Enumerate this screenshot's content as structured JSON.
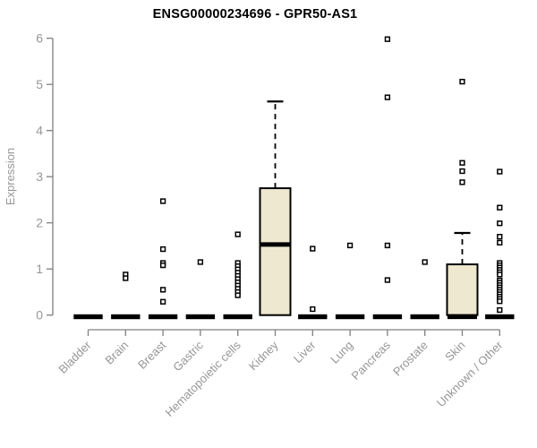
{
  "chart_data": {
    "type": "boxplot",
    "title": "ENSG00000234696 - GPR50-AS1",
    "ylabel": "Expression",
    "ylim": [
      0,
      6
    ],
    "yticks": [
      0,
      1,
      2,
      3,
      4,
      5,
      6
    ],
    "grid": false,
    "categories": [
      "Bladder",
      "Brain",
      "Breast",
      "Gastric",
      "Hematopoietic cells",
      "Kidney",
      "Liver",
      "Lung",
      "Pancreas",
      "Prostate",
      "Skin",
      "Unknown / Other"
    ],
    "series": [
      {
        "label": "Bladder",
        "q1": 0,
        "median": 0,
        "q3": 0,
        "whisker_low": 0,
        "whisker_high": 0,
        "outliers": []
      },
      {
        "label": "Brain",
        "q1": 0,
        "median": 0,
        "q3": 0,
        "whisker_low": 0,
        "whisker_high": 0,
        "outliers": [
          0.88,
          0.8
        ]
      },
      {
        "label": "Breast",
        "q1": 0,
        "median": 0,
        "q3": 0,
        "whisker_low": 0,
        "whisker_high": 0,
        "outliers": [
          2.47,
          1.43,
          1.13,
          1.08,
          0.55,
          0.29
        ]
      },
      {
        "label": "Gastric",
        "q1": 0,
        "median": 0,
        "q3": 0,
        "whisker_low": 0,
        "whisker_high": 0,
        "outliers": [
          1.15
        ]
      },
      {
        "label": "Hematopoietic cells",
        "q1": 0,
        "median": 0,
        "q3": 0,
        "whisker_low": 0,
        "whisker_high": 0,
        "outliers": [
          1.75,
          1.13,
          1.06,
          0.99,
          0.92,
          0.85,
          0.78,
          0.71,
          0.64,
          0.57,
          0.5,
          0.43
        ]
      },
      {
        "label": "Kidney",
        "q1": 0,
        "median": 1.53,
        "q3": 2.75,
        "whisker_low": 0,
        "whisker_high": 4.63,
        "outliers": []
      },
      {
        "label": "Liver",
        "q1": 0,
        "median": 0,
        "q3": 0,
        "whisker_low": 0,
        "whisker_high": 0,
        "outliers": [
          1.44,
          0.13
        ]
      },
      {
        "label": "Lung",
        "q1": 0,
        "median": 0,
        "q3": 0,
        "whisker_low": 0,
        "whisker_high": 0,
        "outliers": [
          1.51
        ]
      },
      {
        "label": "Pancreas",
        "q1": 0,
        "median": 0,
        "q3": 0,
        "whisker_low": 0,
        "whisker_high": 0,
        "outliers": [
          5.98,
          4.72,
          1.51,
          0.76
        ]
      },
      {
        "label": "Prostate",
        "q1": 0,
        "median": 0,
        "q3": 0,
        "whisker_low": 0,
        "whisker_high": 0,
        "outliers": [
          1.15
        ]
      },
      {
        "label": "Skin",
        "q1": 0,
        "median": 0,
        "q3": 1.1,
        "whisker_low": 0,
        "whisker_high": 1.78,
        "outliers": [
          5.06,
          3.3,
          3.12,
          2.88
        ]
      },
      {
        "label": "Unknown / Other",
        "q1": 0,
        "median": 0,
        "q3": 0,
        "whisker_low": 0,
        "whisker_high": 0,
        "outliers": [
          3.11,
          2.33,
          1.99,
          1.7,
          1.57,
          1.13,
          1.08,
          1.03,
          0.98,
          0.93,
          0.88,
          0.75,
          0.7,
          0.65,
          0.6,
          0.55,
          0.5,
          0.45,
          0.4,
          0.35,
          0.3,
          0.11
        ]
      }
    ],
    "style": {
      "box_fill": "#EDE8CF",
      "box_stroke": "#000000",
      "median_color": "#000000",
      "outlier_marker": "open-square",
      "axis_line_color": "#808080",
      "axis_text_color": "#969696",
      "title_color": "#000000",
      "background": "#FFFFFF"
    },
    "layout_hints": {
      "legend": "none",
      "x_label_rotation_deg": 45
    }
  }
}
